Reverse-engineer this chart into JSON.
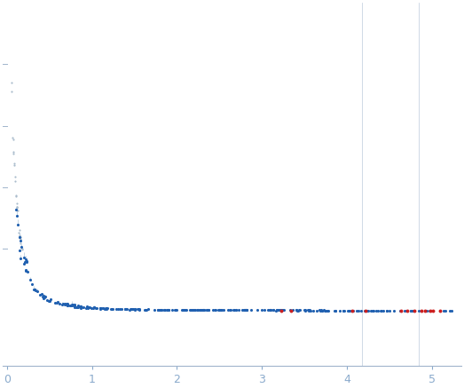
{
  "background_color": "#ffffff",
  "axis_color": "#a0b4cc",
  "tick_color": "#8aaacc",
  "blue_dot_color": "#2060b0",
  "red_dot_color": "#cc2020",
  "errorbar_color": "#b8ccdd",
  "xticks": [
    0,
    1,
    2,
    3,
    4,
    5
  ],
  "xlim": [
    -0.05,
    5.35
  ],
  "seed": 77,
  "n_main": 320,
  "n_sparse": 70
}
